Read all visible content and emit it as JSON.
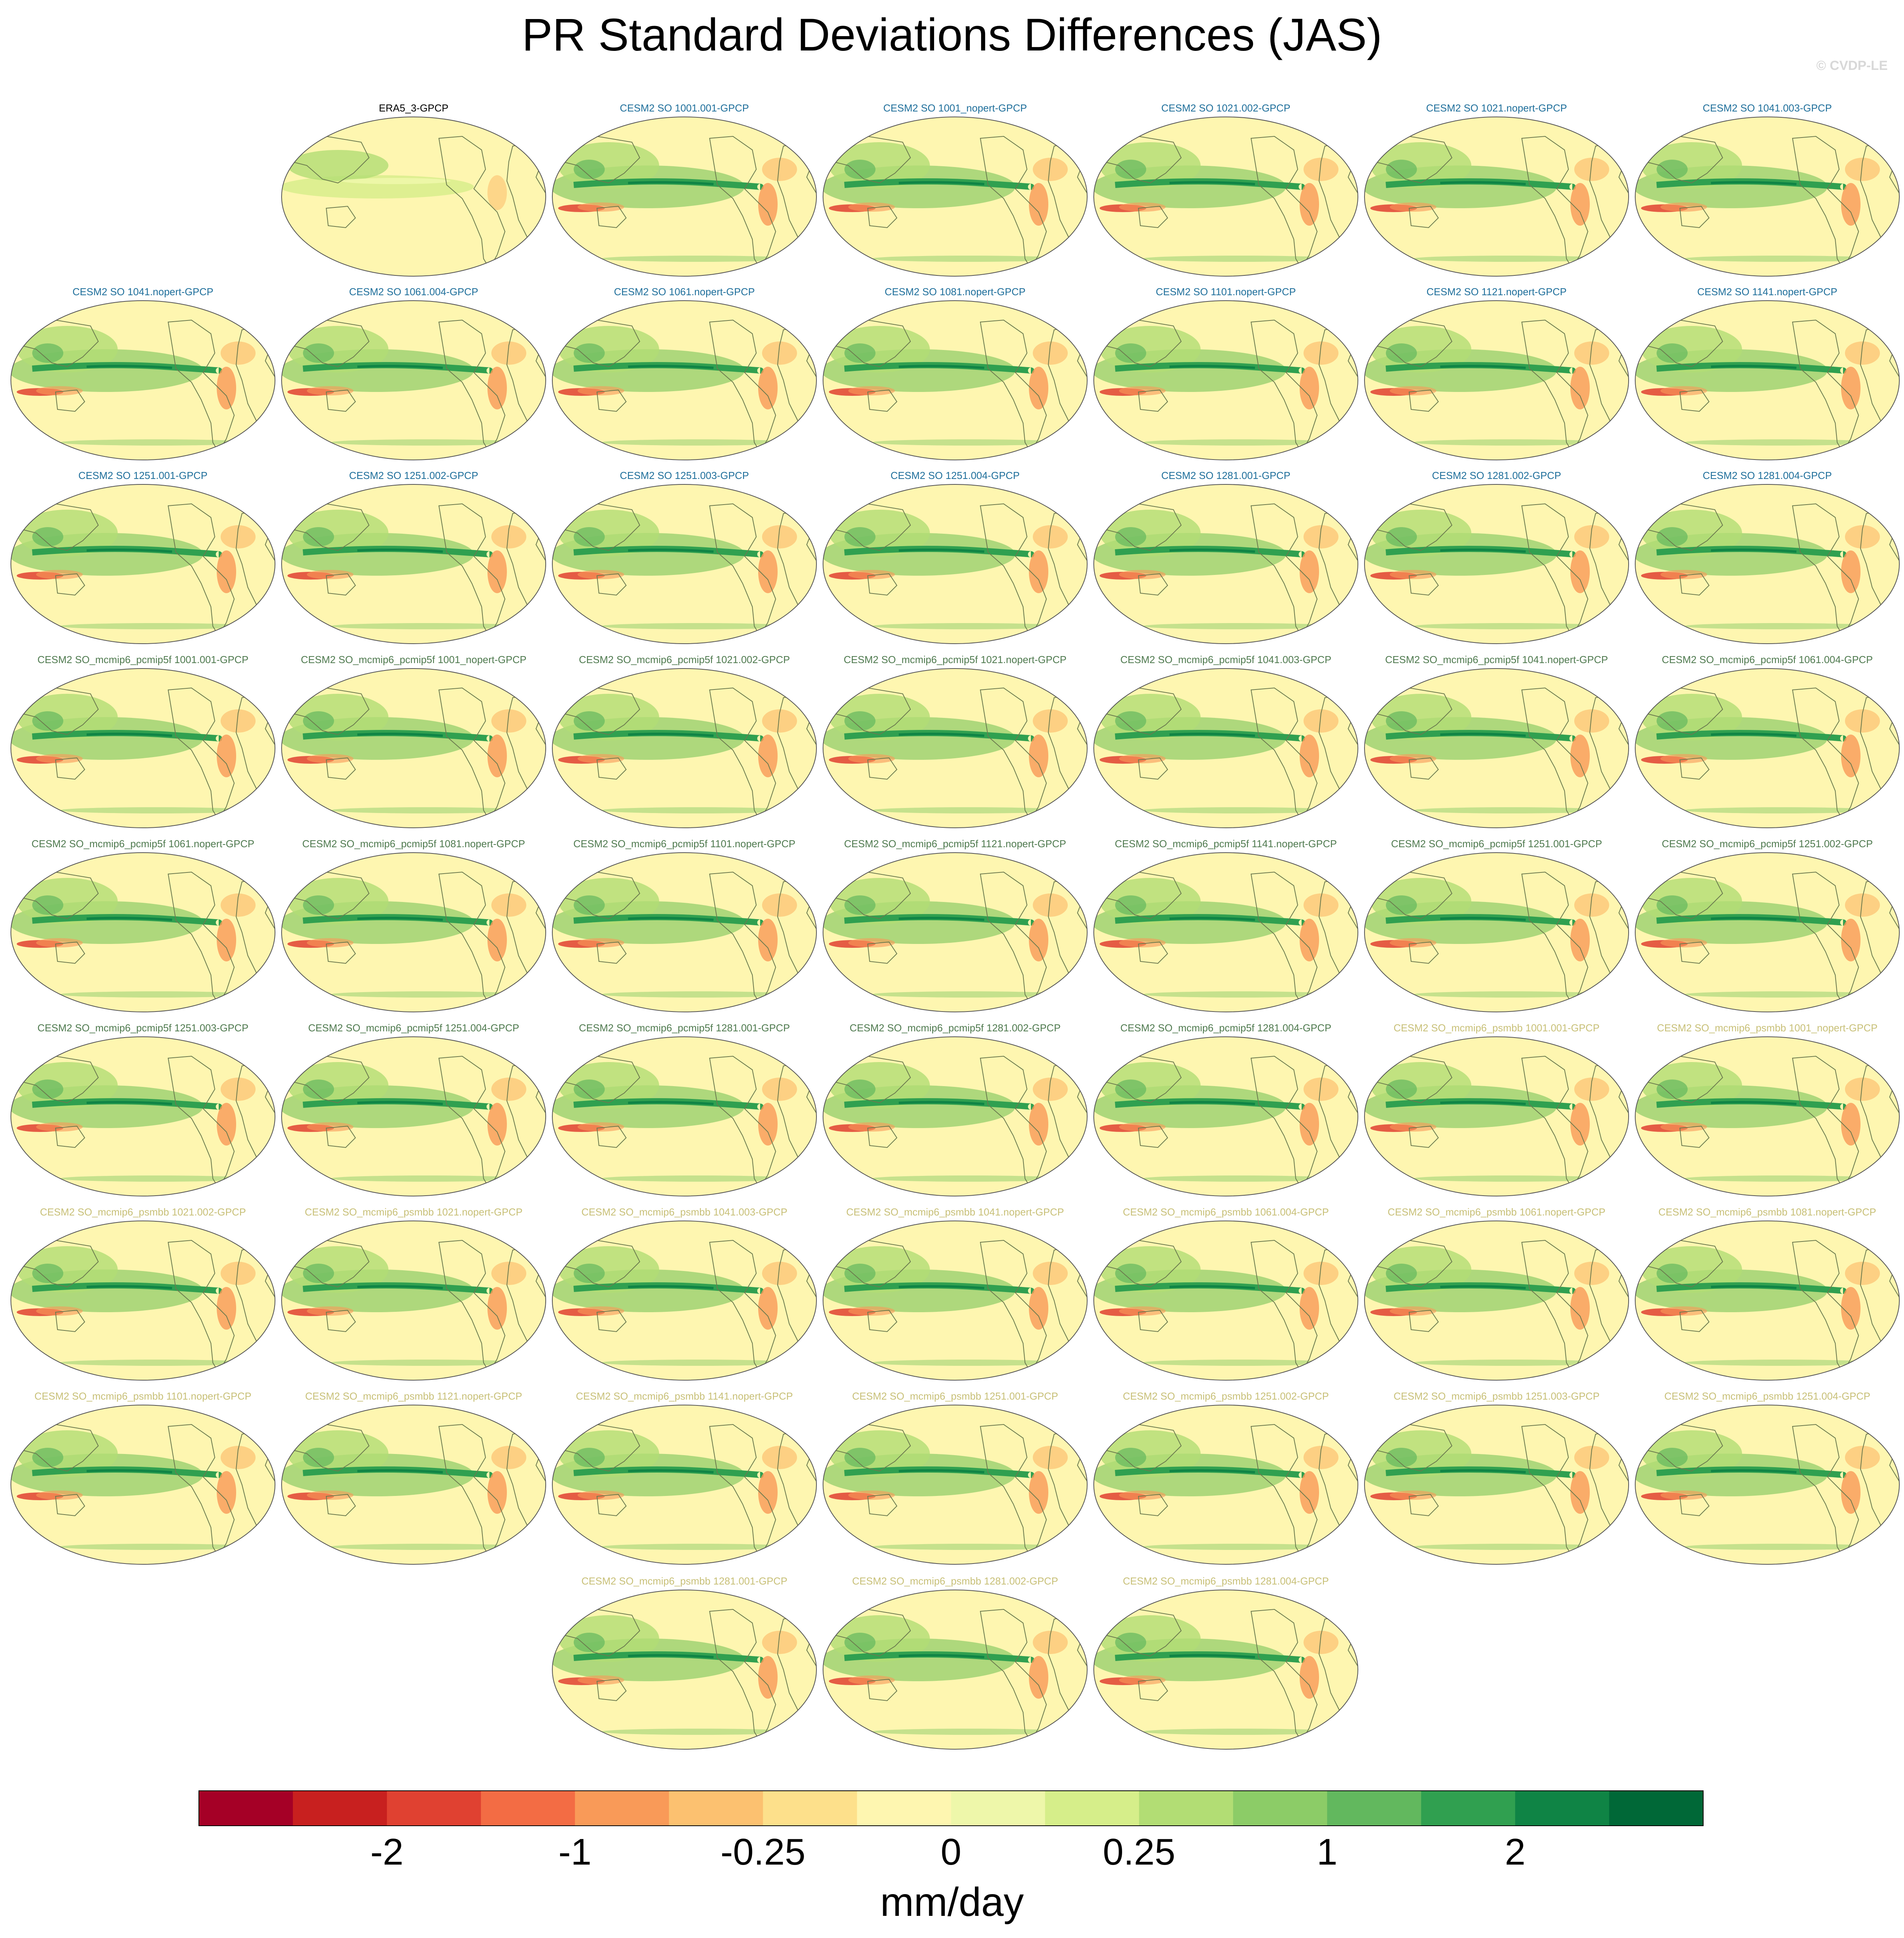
{
  "figure": {
    "title": "PR Standard Deviations Differences (JAS)",
    "credit": "© CVDP-LE"
  },
  "colors": {
    "label_obs": "#000000",
    "label_so": "#1f6f9b",
    "label_pcmip5f": "#4f7a4f",
    "label_psmbb": "#c8c078"
  },
  "panels": [
    {
      "label": "ERA5_3-GPCP",
      "group": "obs"
    },
    {
      "label": "CESM2 SO 1001.001-GPCP",
      "group": "so"
    },
    {
      "label": "CESM2 SO 1001_nopert-GPCP",
      "group": "so"
    },
    {
      "label": "CESM2 SO 1021.002-GPCP",
      "group": "so"
    },
    {
      "label": "CESM2 SO 1021.nopert-GPCP",
      "group": "so"
    },
    {
      "label": "CESM2 SO 1041.003-GPCP",
      "group": "so"
    },
    {
      "label": "CESM2 SO 1041.nopert-GPCP",
      "group": "so"
    },
    {
      "label": "CESM2 SO 1061.004-GPCP",
      "group": "so"
    },
    {
      "label": "CESM2 SO 1061.nopert-GPCP",
      "group": "so"
    },
    {
      "label": "CESM2 SO 1081.nopert-GPCP",
      "group": "so"
    },
    {
      "label": "CESM2 SO 1101.nopert-GPCP",
      "group": "so"
    },
    {
      "label": "CESM2 SO 1121.nopert-GPCP",
      "group": "so"
    },
    {
      "label": "CESM2 SO 1141.nopert-GPCP",
      "group": "so"
    },
    {
      "label": "CESM2 SO 1251.001-GPCP",
      "group": "so"
    },
    {
      "label": "CESM2 SO 1251.002-GPCP",
      "group": "so"
    },
    {
      "label": "CESM2 SO 1251.003-GPCP",
      "group": "so"
    },
    {
      "label": "CESM2 SO 1251.004-GPCP",
      "group": "so"
    },
    {
      "label": "CESM2 SO 1281.001-GPCP",
      "group": "so"
    },
    {
      "label": "CESM2 SO 1281.002-GPCP",
      "group": "so"
    },
    {
      "label": "CESM2 SO 1281.004-GPCP",
      "group": "so"
    },
    {
      "label": "CESM2 SO_mcmip6_pcmip5f 1001.001-GPCP",
      "group": "pcmip5f"
    },
    {
      "label": "CESM2 SO_mcmip6_pcmip5f 1001_nopert-GPCP",
      "group": "pcmip5f"
    },
    {
      "label": "CESM2 SO_mcmip6_pcmip5f 1021.002-GPCP",
      "group": "pcmip5f"
    },
    {
      "label": "CESM2 SO_mcmip6_pcmip5f 1021.nopert-GPCP",
      "group": "pcmip5f"
    },
    {
      "label": "CESM2 SO_mcmip6_pcmip5f 1041.003-GPCP",
      "group": "pcmip5f"
    },
    {
      "label": "CESM2 SO_mcmip6_pcmip5f 1041.nopert-GPCP",
      "group": "pcmip5f"
    },
    {
      "label": "CESM2 SO_mcmip6_pcmip5f 1061.004-GPCP",
      "group": "pcmip5f"
    },
    {
      "label": "CESM2 SO_mcmip6_pcmip5f 1061.nopert-GPCP",
      "group": "pcmip5f"
    },
    {
      "label": "CESM2 SO_mcmip6_pcmip5f 1081.nopert-GPCP",
      "group": "pcmip5f"
    },
    {
      "label": "CESM2 SO_mcmip6_pcmip5f 1101.nopert-GPCP",
      "group": "pcmip5f"
    },
    {
      "label": "CESM2 SO_mcmip6_pcmip5f 1121.nopert-GPCP",
      "group": "pcmip5f"
    },
    {
      "label": "CESM2 SO_mcmip6_pcmip5f 1141.nopert-GPCP",
      "group": "pcmip5f"
    },
    {
      "label": "CESM2 SO_mcmip6_pcmip5f 1251.001-GPCP",
      "group": "pcmip5f"
    },
    {
      "label": "CESM2 SO_mcmip6_pcmip5f 1251.002-GPCP",
      "group": "pcmip5f"
    },
    {
      "label": "CESM2 SO_mcmip6_pcmip5f 1251.003-GPCP",
      "group": "pcmip5f"
    },
    {
      "label": "CESM2 SO_mcmip6_pcmip5f 1251.004-GPCP",
      "group": "pcmip5f"
    },
    {
      "label": "CESM2 SO_mcmip6_pcmip5f 1281.001-GPCP",
      "group": "pcmip5f"
    },
    {
      "label": "CESM2 SO_mcmip6_pcmip5f 1281.002-GPCP",
      "group": "pcmip5f"
    },
    {
      "label": "CESM2 SO_mcmip6_pcmip5f 1281.004-GPCP",
      "group": "pcmip5f"
    },
    {
      "label": "CESM2 SO_mcmip6_psmbb 1001.001-GPCP",
      "group": "psmbb"
    },
    {
      "label": "CESM2 SO_mcmip6_psmbb 1001_nopert-GPCP",
      "group": "psmbb"
    },
    {
      "label": "CESM2 SO_mcmip6_psmbb 1021.002-GPCP",
      "group": "psmbb"
    },
    {
      "label": "CESM2 SO_mcmip6_psmbb 1021.nopert-GPCP",
      "group": "psmbb"
    },
    {
      "label": "CESM2 SO_mcmip6_psmbb 1041.003-GPCP",
      "group": "psmbb"
    },
    {
      "label": "CESM2 SO_mcmip6_psmbb 1041.nopert-GPCP",
      "group": "psmbb"
    },
    {
      "label": "CESM2 SO_mcmip6_psmbb 1061.004-GPCP",
      "group": "psmbb"
    },
    {
      "label": "CESM2 SO_mcmip6_psmbb 1061.nopert-GPCP",
      "group": "psmbb"
    },
    {
      "label": "CESM2 SO_mcmip6_psmbb 1081.nopert-GPCP",
      "group": "psmbb"
    },
    {
      "label": "CESM2 SO_mcmip6_psmbb 1101.nopert-GPCP",
      "group": "psmbb"
    },
    {
      "label": "CESM2 SO_mcmip6_psmbb 1121.nopert-GPCP",
      "group": "psmbb"
    },
    {
      "label": "CESM2 SO_mcmip6_psmbb 1141.nopert-GPCP",
      "group": "psmbb"
    },
    {
      "label": "CESM2 SO_mcmip6_psmbb 1251.001-GPCP",
      "group": "psmbb"
    },
    {
      "label": "CESM2 SO_mcmip6_psmbb 1251.002-GPCP",
      "group": "psmbb"
    },
    {
      "label": "CESM2 SO_mcmip6_psmbb 1251.003-GPCP",
      "group": "psmbb"
    },
    {
      "label": "CESM2 SO_mcmip6_psmbb 1251.004-GPCP",
      "group": "psmbb"
    },
    {
      "label": "CESM2 SO_mcmip6_psmbb 1281.001-GPCP",
      "group": "psmbb"
    },
    {
      "label": "CESM2 SO_mcmip6_psmbb 1281.002-GPCP",
      "group": "psmbb"
    },
    {
      "label": "CESM2 SO_mcmip6_psmbb 1281.004-GPCP",
      "group": "psmbb"
    }
  ],
  "colorbar": {
    "units": "mm/day",
    "colors": [
      "#a50026",
      "#c8201f",
      "#e04131",
      "#f36c44",
      "#f99a58",
      "#fcc170",
      "#fde08b",
      "#fef6b0",
      "#eef7aa",
      "#d6ee8a",
      "#b2dd74",
      "#8ccc67",
      "#62b85e",
      "#30a050",
      "#0f8445",
      "#006837"
    ],
    "ticks": [
      {
        "label": "-2",
        "boundary": 2
      },
      {
        "label": "-1",
        "boundary": 4
      },
      {
        "label": "-0.25",
        "boundary": 6
      },
      {
        "label": "0",
        "boundary": 8
      },
      {
        "label": "0.25",
        "boundary": 10
      },
      {
        "label": "1",
        "boundary": 12
      },
      {
        "label": "2",
        "boundary": 14
      }
    ]
  }
}
